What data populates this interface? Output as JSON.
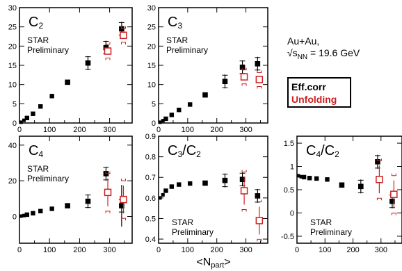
{
  "collision": {
    "system": "Au+Au,",
    "energy": "√s_NN = 19.6 GeV"
  },
  "legend": {
    "eff": "Eff.corr",
    "unf": "Unfolding"
  },
  "colors": {
    "eff": "#000000",
    "unf": "#cc1f1f"
  },
  "xlabel": "<N_part>",
  "chart_data": [
    {
      "type": "scatter",
      "title": "C_2",
      "label": "STAR\nPreliminary",
      "xlim": [
        0,
        375
      ],
      "ylim": [
        0,
        30
      ],
      "yticks": [
        0,
        5,
        10,
        15,
        20,
        25,
        30
      ],
      "xticks": [
        0,
        100,
        200,
        300
      ],
      "series": [
        {
          "name": "Eff.corr",
          "x": [
            5,
            15,
            25,
            45,
            70,
            108,
            160,
            228,
            288,
            340
          ],
          "y": [
            0.2,
            0.7,
            1.3,
            2.4,
            4.3,
            7.0,
            10.6,
            15.6,
            19.6,
            24.5
          ]
        },
        {
          "name": "Unfolding",
          "x": [
            294,
            346
          ],
          "y": [
            18.7,
            22.8
          ]
        }
      ]
    },
    {
      "type": "scatter",
      "title": "C_3",
      "label": "STAR\nPreliminary",
      "xlim": [
        0,
        375
      ],
      "ylim": [
        0,
        30
      ],
      "yticks": [
        0,
        5,
        10,
        15,
        20,
        25,
        30
      ],
      "xticks": [
        0,
        100,
        200,
        300
      ],
      "series": [
        {
          "name": "Eff.corr",
          "x": [
            5,
            15,
            25,
            45,
            70,
            108,
            160,
            228,
            288,
            340
          ],
          "y": [
            0.2,
            0.6,
            1.1,
            2.1,
            3.4,
            4.8,
            7.3,
            10.8,
            14.5,
            15.4
          ]
        },
        {
          "name": "Unfolding",
          "x": [
            294,
            346
          ],
          "y": [
            12.0,
            11.3
          ]
        }
      ]
    },
    {
      "type": "scatter",
      "title": "C_4",
      "label": "STAR\nPreliminary",
      "xlim": [
        0,
        375
      ],
      "ylim": [
        -15,
        45
      ],
      "yticks": [
        0,
        20,
        40
      ],
      "xticks": [
        0,
        100,
        200,
        300
      ],
      "series": [
        {
          "name": "Eff.corr",
          "x": [
            5,
            15,
            25,
            45,
            70,
            108,
            160,
            228,
            288,
            340
          ],
          "y": [
            0.2,
            0.5,
            1.0,
            1.8,
            3.0,
            4.3,
            6.0,
            8.5,
            24.0,
            6.0
          ]
        },
        {
          "name": "Unfolding",
          "x": [
            294,
            346
          ],
          "y": [
            13.5,
            9.5
          ]
        }
      ]
    },
    {
      "type": "scatter",
      "title": "C_3/C_2",
      "label": "STAR\nPreliminary",
      "xlim": [
        0,
        375
      ],
      "ylim": [
        0.38,
        0.9
      ],
      "yticks": [
        0.4,
        0.5,
        0.6,
        0.7,
        0.8,
        0.9
      ],
      "xticks": [
        0,
        100,
        200,
        300
      ],
      "series": [
        {
          "name": "Eff.corr",
          "x": [
            5,
            15,
            25,
            45,
            70,
            108,
            160,
            228,
            288,
            340
          ],
          "y": [
            0.6,
            0.615,
            0.635,
            0.655,
            0.665,
            0.67,
            0.672,
            0.685,
            0.69,
            0.61
          ]
        },
        {
          "name": "Unfolding",
          "x": [
            294,
            346
          ],
          "y": [
            0.635,
            0.49
          ]
        }
      ]
    },
    {
      "type": "scatter",
      "title": "C_4/C_2",
      "label": "STAR\nPreliminary",
      "xlim": [
        0,
        375
      ],
      "ylim": [
        -0.65,
        1.65
      ],
      "yticks": [
        -0.5,
        0,
        0.5,
        1,
        1.5
      ],
      "xticks": [
        0,
        100,
        200,
        300
      ],
      "series": [
        {
          "name": "Eff.corr",
          "x": [
            5,
            15,
            25,
            45,
            70,
            108,
            160,
            228,
            288,
            340
          ],
          "y": [
            0.8,
            0.78,
            0.77,
            0.75,
            0.74,
            0.72,
            0.6,
            0.57,
            1.1,
            0.25
          ]
        },
        {
          "name": "Unfolding",
          "x": [
            294,
            346
          ],
          "y": [
            0.72,
            0.4
          ]
        }
      ]
    }
  ]
}
